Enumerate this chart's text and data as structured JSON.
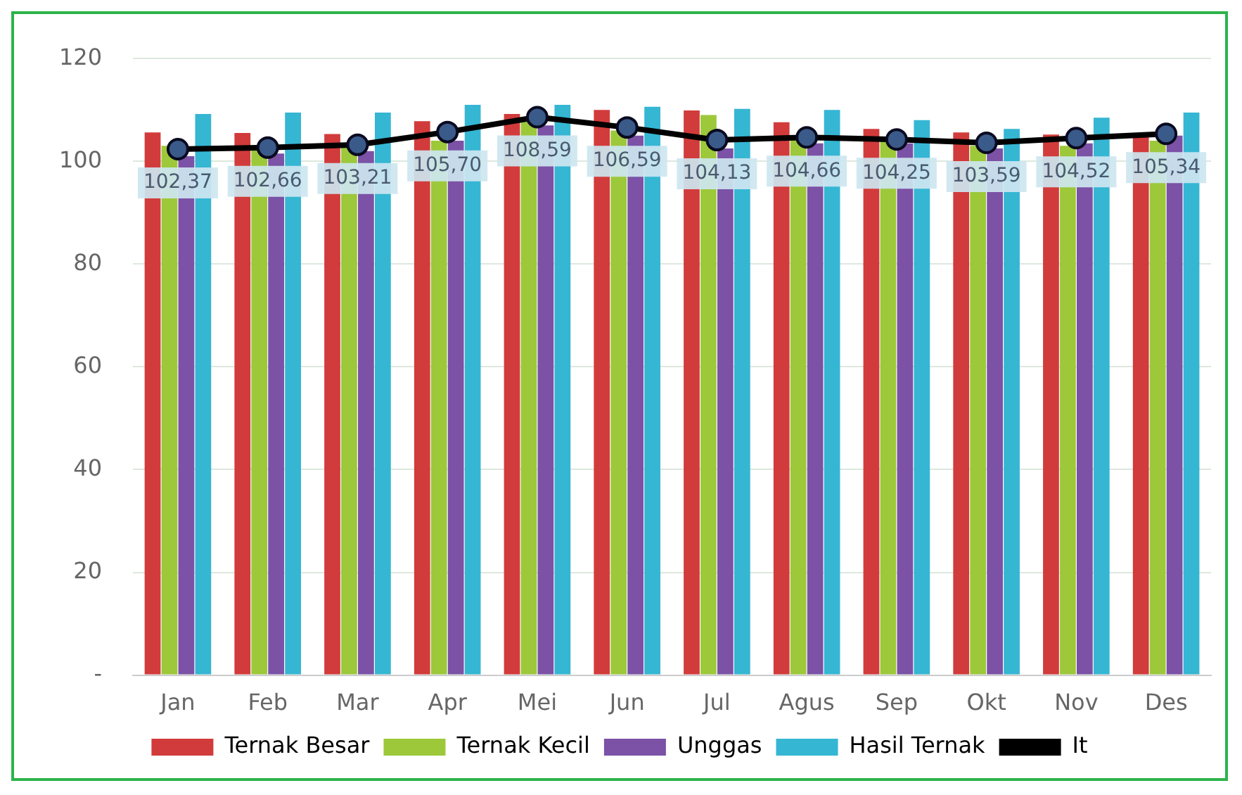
{
  "chart_data": {
    "type": "bar",
    "categories": [
      "Jan",
      "Feb",
      "Mar",
      "Apr",
      "Mei",
      "Jun",
      "Jul",
      "Agus",
      "Sep",
      "Okt",
      "Nov",
      "Des"
    ],
    "ylim": [
      0,
      120
    ],
    "yticks": [
      {
        "value": 0,
        "label": "-"
      },
      20,
      40,
      60,
      80,
      100,
      120
    ],
    "grid": "y",
    "legend": "bottom",
    "marker": "circle",
    "series": [
      {
        "name": "Ternak Besar",
        "color": "#d23b3b",
        "values": [
          105.6,
          105.5,
          105.3,
          107.8,
          109.2,
          110,
          109.9,
          107.6,
          106.3,
          105.6,
          105.2,
          105
        ]
      },
      {
        "name": "Ternak Kecil",
        "color": "#9cc83a",
        "values": [
          103,
          103,
          103,
          104,
          108,
          106,
          109,
          105,
          104,
          103,
          103,
          104
        ]
      },
      {
        "name": "Unggas",
        "color": "#7b52a6",
        "values": [
          101,
          101.5,
          102,
          104,
          107,
          105,
          102.5,
          103.5,
          103.5,
          102.5,
          103.5,
          105
        ]
      },
      {
        "name": "Hasil Ternak",
        "color": "#35b6d3",
        "values": [
          109.2,
          109.5,
          109.5,
          111,
          111,
          110.6,
          110.2,
          110,
          108,
          106.3,
          108.5,
          109.5
        ]
      },
      {
        "name": "It",
        "type": "line",
        "color": "#000000",
        "values": [
          102.37,
          102.66,
          103.21,
          105.7,
          108.59,
          106.59,
          104.13,
          104.66,
          104.25,
          103.59,
          104.52,
          105.34
        ],
        "value_labels": [
          "102,37",
          "102,66",
          "103,21",
          "105,70",
          "108,59",
          "106,59",
          "104,13",
          "104,66",
          "104,25",
          "103,59",
          "104,52",
          "105,34"
        ]
      }
    ]
  }
}
